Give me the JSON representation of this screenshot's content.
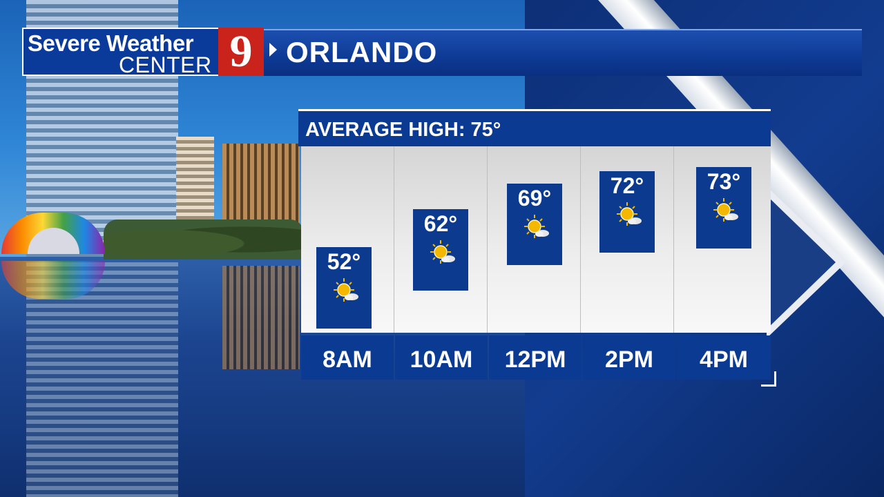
{
  "header": {
    "brand_line1": "Severe Weather",
    "brand_line2": "CENTER",
    "logo_number": "9",
    "city": "ORLANDO"
  },
  "forecast": {
    "title": "AVERAGE HIGH: 75°",
    "periods": [
      {
        "time": "8AM",
        "temp": "52°",
        "icon": "mostly-sunny-icon"
      },
      {
        "time": "10AM",
        "temp": "62°",
        "icon": "mostly-sunny-icon"
      },
      {
        "time": "12PM",
        "temp": "69°",
        "icon": "mostly-sunny-icon"
      },
      {
        "time": "2PM",
        "temp": "72°",
        "icon": "mostly-sunny-icon"
      },
      {
        "time": "4PM",
        "temp": "73°",
        "icon": "mostly-sunny-icon"
      }
    ]
  },
  "colors": {
    "panel_blue": "#0b3a93",
    "logo_red": "#c9231c",
    "sun_yellow": "#f5b800"
  }
}
